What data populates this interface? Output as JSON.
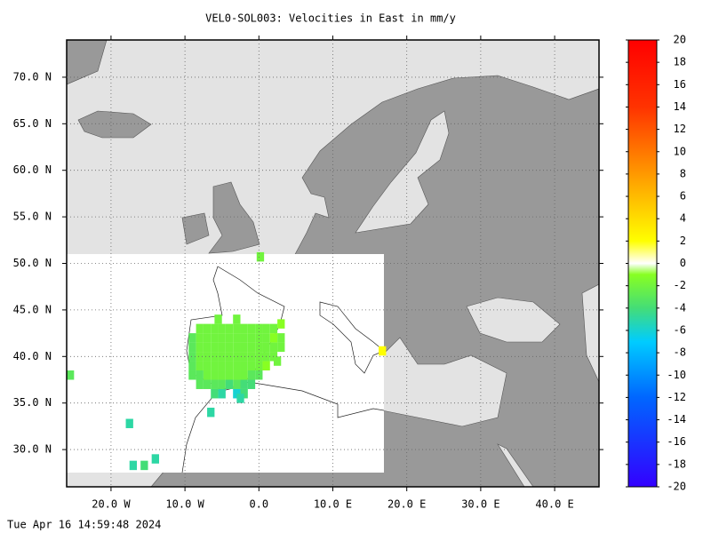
{
  "chart_data": {
    "type": "map",
    "title": "VEL0-SOL003: Velocities in East in mm/y",
    "timestamp": "Tue Apr 16 14:59:48 2024",
    "xlim": [
      -26,
      46
    ],
    "ylim": [
      26,
      74
    ],
    "xticks": [
      {
        "value": -20,
        "label": "20.0 W"
      },
      {
        "value": -10,
        "label": "10.0 W"
      },
      {
        "value": 0,
        "label": "0.0"
      },
      {
        "value": 10,
        "label": "10.0 E"
      },
      {
        "value": 20,
        "label": "20.0 E"
      },
      {
        "value": 30,
        "label": "30.0 E"
      },
      {
        "value": 40,
        "label": "40.0 E"
      }
    ],
    "yticks": [
      {
        "value": 30,
        "label": "30.0 N"
      },
      {
        "value": 35,
        "label": "35.0 N"
      },
      {
        "value": 40,
        "label": "40.0 N"
      },
      {
        "value": 45,
        "label": "45.0 N"
      },
      {
        "value": 50,
        "label": "50.0 N"
      },
      {
        "value": 55,
        "label": "55.0 N"
      },
      {
        "value": 60,
        "label": "60.0 N"
      },
      {
        "value": 65,
        "label": "65.0 N"
      },
      {
        "value": 70,
        "label": "70.0 N"
      }
    ],
    "grid": true,
    "clim": [
      -20,
      20
    ],
    "cticks": [
      20,
      18,
      16,
      14,
      12,
      10,
      8,
      6,
      4,
      2,
      0,
      -2,
      -4,
      -6,
      -8,
      -10,
      -12,
      -14,
      -16,
      -18,
      -20
    ],
    "colorscale": [
      {
        "value": 20,
        "color": "#ff0000"
      },
      {
        "value": 14,
        "color": "#ff3300"
      },
      {
        "value": 8,
        "color": "#ff9900"
      },
      {
        "value": 2,
        "color": "#ffff00"
      },
      {
        "value": 0,
        "color": "#ffffff"
      },
      {
        "value": -1,
        "color": "#88ff22"
      },
      {
        "value": -4,
        "color": "#44dd77"
      },
      {
        "value": -7,
        "color": "#00ccff"
      },
      {
        "value": -12,
        "color": "#0066ff"
      },
      {
        "value": -20,
        "color": "#3300ff"
      }
    ],
    "cells": {
      "lon": [
        -8,
        -7,
        -6,
        -5,
        -4,
        -3,
        -2,
        -1,
        0,
        1,
        2,
        -9,
        -8,
        -7,
        -6,
        -5,
        -4,
        -3,
        -2,
        -1,
        0,
        1,
        2,
        3,
        -9,
        -8,
        -7,
        -6,
        -5,
        -4,
        -3,
        -2,
        -1,
        0,
        1,
        2,
        3,
        -9,
        -8,
        -7,
        -6,
        -5,
        -4,
        -3,
        -2,
        -1,
        0,
        1,
        2,
        -9,
        -8,
        -7,
        -6,
        -5,
        -4,
        -3,
        -2,
        -1,
        0,
        1,
        -9,
        -8,
        -7,
        -6,
        -5,
        -4,
        -3,
        -2,
        -1,
        0,
        -8,
        -7,
        -6,
        -5,
        -4,
        -3,
        -2,
        -1,
        -6,
        -5,
        -3,
        -2,
        -25.5,
        -17.5,
        -17,
        -15.5,
        -14,
        -6.5,
        -2.5,
        0.2,
        16.7,
        -5.5,
        -3,
        2.5,
        3
      ],
      "lat": [
        43,
        43,
        43,
        43,
        43,
        43,
        43,
        43,
        43,
        43,
        43,
        42,
        42,
        42,
        42,
        42,
        42,
        42,
        42,
        42,
        42,
        42,
        42,
        42,
        41,
        41,
        41,
        41,
        41,
        41,
        41,
        41,
        41,
        41,
        41,
        41,
        41,
        40,
        40,
        40,
        40,
        40,
        40,
        40,
        40,
        40,
        40,
        40,
        40,
        39,
        39,
        39,
        39,
        39,
        39,
        39,
        39,
        39,
        39,
        39,
        38,
        38,
        38,
        38,
        38,
        38,
        38,
        38,
        38,
        38,
        37,
        37,
        37,
        37,
        37,
        37,
        37,
        37,
        36,
        36,
        36,
        36,
        38,
        32.8,
        28.3,
        28.3,
        29,
        34,
        35.5,
        50.7,
        40.6,
        44,
        44,
        39.5,
        43.5
      ],
      "values": [
        -2,
        -2,
        -2,
        -2,
        -2,
        -2,
        -2,
        -2,
        -2,
        -2,
        -2,
        -3,
        -2,
        -2,
        -2,
        -2,
        -2,
        -2,
        -2,
        -2,
        -2,
        -2,
        -1,
        -2,
        -3,
        -2,
        -2,
        -2,
        -2,
        -2,
        -2,
        -2,
        -2,
        -2,
        -2,
        -2,
        -2,
        -3,
        -2,
        -2,
        -2,
        -2,
        -2,
        -2,
        -2,
        -2,
        -2,
        -2,
        -2,
        -3,
        -2,
        -2,
        -2,
        -2,
        -2,
        -2,
        -2,
        -2,
        -2,
        -1,
        -3,
        -3,
        -2,
        -2,
        -2,
        -2,
        -2,
        -2,
        -3,
        -3,
        -3,
        -3,
        -3,
        -3,
        -4,
        -3,
        -4,
        -4,
        -4,
        -5,
        -6,
        -4,
        -3,
        -5,
        -5,
        -4,
        -5,
        -5,
        -5,
        -2,
        2,
        -2,
        -2,
        -2,
        -1
      ]
    }
  }
}
